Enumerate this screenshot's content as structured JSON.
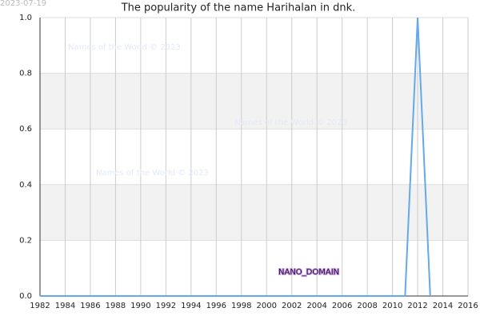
{
  "chart_data": {
    "type": "line",
    "title": "The popularity of the name Harihalan in dnk.",
    "date": "2023-07-19",
    "watermarks": [
      "Names of the World © 2023",
      "Names of the World © 2023",
      "Names of the World © 2023"
    ],
    "domain_label": "NANO_DOMAIN",
    "x": [
      1982,
      1983,
      1984,
      1985,
      1986,
      1987,
      1988,
      1989,
      1990,
      1991,
      1992,
      1993,
      1994,
      1995,
      1996,
      1997,
      1998,
      1999,
      2000,
      2001,
      2002,
      2003,
      2004,
      2005,
      2006,
      2007,
      2008,
      2009,
      2010,
      2011,
      2012,
      2013
    ],
    "values": [
      0,
      0,
      0,
      0,
      0,
      0,
      0,
      0,
      0,
      0,
      0,
      0,
      0,
      0,
      0,
      0,
      0,
      0,
      0,
      0,
      0,
      0,
      0,
      0,
      0,
      0,
      0,
      0,
      0,
      0,
      1,
      0
    ],
    "color": "#64a9e8",
    "xlim": [
      1982,
      2016
    ],
    "xticks": [
      1982,
      1984,
      1986,
      1988,
      1990,
      1992,
      1994,
      1996,
      1998,
      2000,
      2002,
      2004,
      2006,
      2008,
      2010,
      2012,
      2014,
      2016
    ],
    "ylim": [
      0,
      1
    ],
    "yticks": [
      {
        "value": 0,
        "label": "0.0"
      },
      0.2,
      0.4,
      0.6,
      0.8,
      {
        "value": 1,
        "label": "1.0"
      }
    ],
    "grid": true
  }
}
